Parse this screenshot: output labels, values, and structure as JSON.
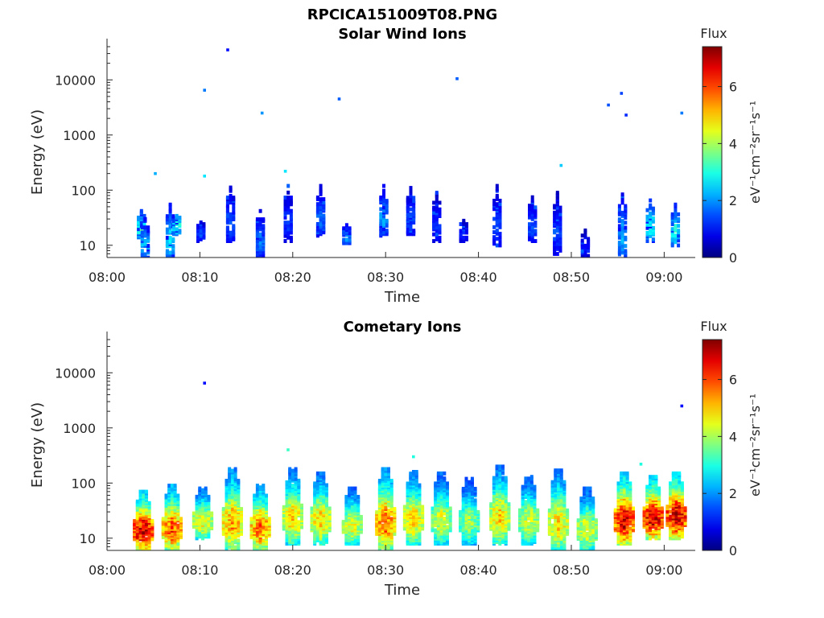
{
  "figure": {
    "title": "RPCICA151009T08.PNG",
    "time_axis_start": "08:00",
    "time_axis_end": "09:03"
  },
  "chart_data": [
    {
      "type": "heatmap",
      "title": "Solar Wind Ions",
      "xlabel": "Time",
      "ylabel": "Energy (eV)",
      "yscale": "log",
      "ylim": [
        6,
        40000
      ],
      "x_ticks": [
        "08:00",
        "08:10",
        "08:20",
        "08:30",
        "08:40",
        "08:50",
        "09:00"
      ],
      "y_ticks": [
        "10",
        "100",
        "1000",
        "10000"
      ],
      "colorbar": {
        "label": "Flux",
        "units": "eV⁻¹cm⁻²sr⁻¹s⁻¹",
        "range": [
          0,
          7.4
        ],
        "ticks": [
          "0",
          "2",
          "4",
          "6"
        ]
      },
      "bursts": [
        {
          "t": "08:03.7",
          "lo": 14,
          "hi": 45,
          "peak": 3.3
        },
        {
          "t": "08:04.1",
          "lo": 6,
          "hi": 30,
          "peak": 2.4
        },
        {
          "t": "08:06.8",
          "lo": 6,
          "hi": 55,
          "peak": 2.6
        },
        {
          "t": "08:07.5",
          "lo": 16,
          "hi": 45,
          "peak": 3.1
        },
        {
          "t": "08:10.1",
          "lo": 12,
          "hi": 30,
          "peak": 1.4
        },
        {
          "t": "08:13.3",
          "lo": 12,
          "hi": 120,
          "peak": 1.6
        },
        {
          "t": "08:16.5",
          "lo": 6,
          "hi": 45,
          "peak": 1.8
        },
        {
          "t": "08:19.5",
          "lo": 12,
          "hi": 120,
          "peak": 1.3
        },
        {
          "t": "08:23.0",
          "lo": 15,
          "hi": 120,
          "peak": 1.7
        },
        {
          "t": "08:25.8",
          "lo": 11,
          "hi": 25,
          "peak": 2.2
        },
        {
          "t": "08:29.8",
          "lo": 15,
          "hi": 120,
          "peak": 2.1
        },
        {
          "t": "08:32.7",
          "lo": 15,
          "hi": 110,
          "peak": 1.5
        },
        {
          "t": "08:35.5",
          "lo": 12,
          "hi": 90,
          "peak": 1.3
        },
        {
          "t": "08:38.4",
          "lo": 12,
          "hi": 30,
          "peak": 1.1
        },
        {
          "t": "08:42.0",
          "lo": 10,
          "hi": 120,
          "peak": 1.4
        },
        {
          "t": "08:45.8",
          "lo": 12,
          "hi": 80,
          "peak": 1.5
        },
        {
          "t": "08:48.5",
          "lo": 7,
          "hi": 90,
          "peak": 1.3
        },
        {
          "t": "08:51.5",
          "lo": 6,
          "hi": 20,
          "peak": 1.0
        },
        {
          "t": "08:55.5",
          "lo": 6,
          "hi": 90,
          "peak": 2.2
        },
        {
          "t": "08:58.5",
          "lo": 12,
          "hi": 70,
          "peak": 2.9
        },
        {
          "t": "09:01.2",
          "lo": 10,
          "hi": 55,
          "peak": 2.9
        }
      ],
      "isolated_points": [
        {
          "t": "08:13.0",
          "e": 35000,
          "v": 1.0
        },
        {
          "t": "08:10.5",
          "e": 6500,
          "v": 1.8
        },
        {
          "t": "08:16.7",
          "e": 2500,
          "v": 2.0
        },
        {
          "t": "08:25.0",
          "e": 4500,
          "v": 1.6
        },
        {
          "t": "08:37.7",
          "e": 10500,
          "v": 1.6
        },
        {
          "t": "08:54.0",
          "e": 3500,
          "v": 1.5
        },
        {
          "t": "08:55.4",
          "e": 5700,
          "v": 1.4
        },
        {
          "t": "08:55.9",
          "e": 2300,
          "v": 1.2
        },
        {
          "t": "09:01.9",
          "e": 2500,
          "v": 1.8
        },
        {
          "t": "08:05.2",
          "e": 200,
          "v": 2.2
        },
        {
          "t": "08:10.5",
          "e": 180,
          "v": 2.6
        },
        {
          "t": "08:19.2",
          "e": 220,
          "v": 2.6
        },
        {
          "t": "08:48.9",
          "e": 280,
          "v": 2.4
        }
      ]
    },
    {
      "type": "heatmap",
      "title": "Cometary Ions",
      "xlabel": "Time",
      "ylabel": "Energy (eV)",
      "yscale": "log",
      "ylim": [
        6,
        40000
      ],
      "x_ticks": [
        "08:00",
        "08:10",
        "08:20",
        "08:30",
        "08:40",
        "08:50",
        "09:00"
      ],
      "y_ticks": [
        "10",
        "100",
        "1000",
        "10000"
      ],
      "colorbar": {
        "label": "Flux",
        "units": "eV⁻¹cm⁻²sr⁻¹s⁻¹",
        "range": [
          0,
          7.4
        ],
        "ticks": [
          "0",
          "2",
          "4",
          "6"
        ]
      },
      "bursts": [
        {
          "t": "08:03.9",
          "lo": 6,
          "hi": 70,
          "peak": 7.0
        },
        {
          "t": "08:07.0",
          "lo": 6,
          "hi": 90,
          "peak": 6.0
        },
        {
          "t": "08:10.3",
          "lo": 10,
          "hi": 80,
          "peak": 4.8
        },
        {
          "t": "08:13.5",
          "lo": 6,
          "hi": 180,
          "peak": 5.4
        },
        {
          "t": "08:16.5",
          "lo": 6,
          "hi": 90,
          "peak": 5.8
        },
        {
          "t": "08:20.0",
          "lo": 8,
          "hi": 180,
          "peak": 5.0
        },
        {
          "t": "08:23.0",
          "lo": 8,
          "hi": 150,
          "peak": 5.0
        },
        {
          "t": "08:26.4",
          "lo": 8,
          "hi": 80,
          "peak": 4.6
        },
        {
          "t": "08:30.0",
          "lo": 6,
          "hi": 180,
          "peak": 5.8
        },
        {
          "t": "08:33.0",
          "lo": 8,
          "hi": 160,
          "peak": 5.0
        },
        {
          "t": "08:36.0",
          "lo": 8,
          "hi": 150,
          "peak": 4.4
        },
        {
          "t": "08:39.0",
          "lo": 8,
          "hi": 120,
          "peak": 4.0
        },
        {
          "t": "08:42.3",
          "lo": 8,
          "hi": 200,
          "peak": 5.0
        },
        {
          "t": "08:45.4",
          "lo": 8,
          "hi": 130,
          "peak": 4.4
        },
        {
          "t": "08:48.6",
          "lo": 6,
          "hi": 170,
          "peak": 5.0
        },
        {
          "t": "08:51.7",
          "lo": 6,
          "hi": 80,
          "peak": 4.6
        },
        {
          "t": "08:55.7",
          "lo": 8,
          "hi": 150,
          "peak": 6.8
        },
        {
          "t": "08:58.8",
          "lo": 10,
          "hi": 130,
          "peak": 7.0
        },
        {
          "t": "09:01.3",
          "lo": 10,
          "hi": 150,
          "peak": 7.0
        }
      ],
      "isolated_points": [
        {
          "t": "08:10.5",
          "e": 6500,
          "v": 1.0
        },
        {
          "t": "09:01.9",
          "e": 2500,
          "v": 1.0
        },
        {
          "t": "08:19.5",
          "e": 400,
          "v": 3.2
        },
        {
          "t": "08:33.0",
          "e": 300,
          "v": 3.0
        },
        {
          "t": "08:57.5",
          "e": 220,
          "v": 3.0
        }
      ]
    }
  ]
}
